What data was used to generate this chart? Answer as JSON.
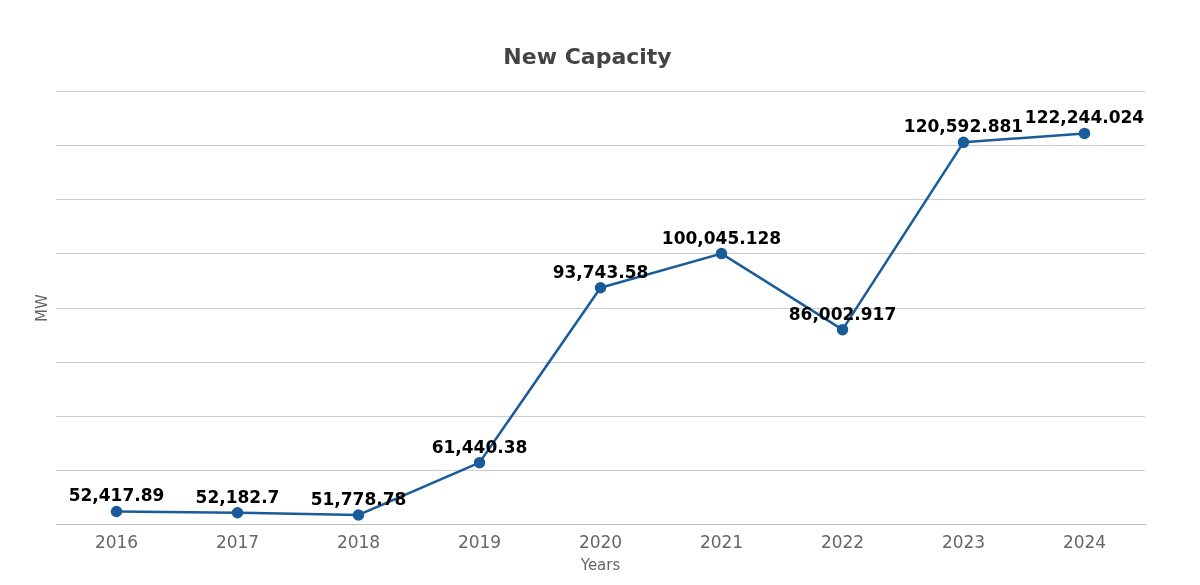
{
  "chart_data": {
    "type": "line",
    "title": "New Capacity",
    "xlabel": "Years",
    "ylabel": "MW",
    "categories": [
      "2016",
      "2017",
      "2018",
      "2019",
      "2020",
      "2021",
      "2022",
      "2023",
      "2024"
    ],
    "series": [
      {
        "color": "#1a5b99",
        "values": [
          52417.89,
          52182.7,
          51778.78,
          61440.38,
          93743.58,
          100045.128,
          86002.917,
          120592.881,
          122244.024
        ],
        "value_labels": [
          "52,417.89",
          "52,182.7",
          "51,778.78",
          "61,440.38",
          "93,743.58",
          "100,045.128",
          "86,002.917",
          "120,592.881",
          "122,244.024"
        ]
      }
    ],
    "tick_labels": "x",
    "grid": "y",
    "legend": false,
    "marker": "circle",
    "line_style": "solid"
  }
}
